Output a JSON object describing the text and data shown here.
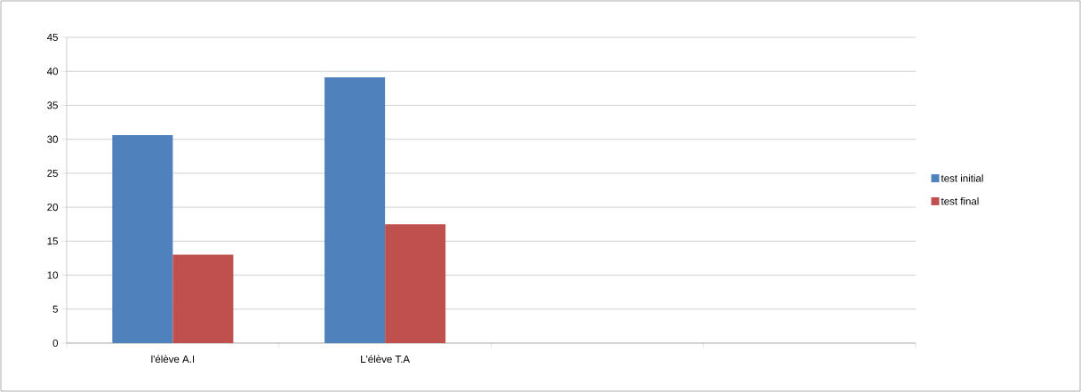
{
  "chart_data": {
    "type": "bar",
    "categories": [
      "l'élève A.I",
      "L'élève T.A",
      null,
      null
    ],
    "series": [
      {
        "name": "test initial",
        "color": "#4f81bd",
        "values": [
          30.6,
          39.1,
          null,
          null
        ]
      },
      {
        "name": "test final",
        "color": "#c0504d",
        "values": [
          13,
          17.5,
          null,
          null
        ]
      }
    ],
    "ylim": [
      0,
      45
    ],
    "yticks": [
      0,
      5,
      10,
      15,
      20,
      25,
      30,
      35,
      40,
      45
    ],
    "grid": "y",
    "legend": "right"
  }
}
